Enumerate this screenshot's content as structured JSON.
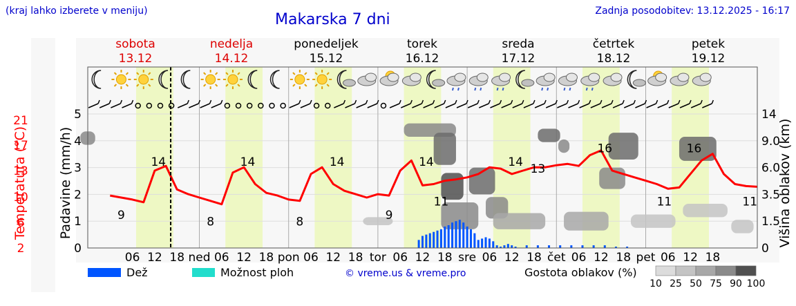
{
  "header": {
    "menu_hint": "(kraj lahko izberete v meniju)",
    "title": "Makarska 7 dni",
    "updated": "Zadnja posodobitev: 13.12.2025 - 16:17"
  },
  "days": [
    {
      "name": "sobota",
      "date": "13.12",
      "weekend": true
    },
    {
      "name": "nedelja",
      "date": "14.12",
      "weekend": true
    },
    {
      "name": "ponedeljek",
      "date": "15.12",
      "weekend": false
    },
    {
      "name": "torek",
      "date": "16.12",
      "weekend": false
    },
    {
      "name": "sreda",
      "date": "17.12",
      "weekend": false
    },
    {
      "name": "četrtek",
      "date": "18.12",
      "weekend": false
    },
    {
      "name": "petek",
      "date": "19.12",
      "weekend": false
    }
  ],
  "colors": {
    "temperature": "#ff0000",
    "rain": "#0055ff",
    "storm": "#22ddcc",
    "daylight": "#eef8c4",
    "now_marker": "#000000",
    "header_text": "#0000cc"
  },
  "weather_icons": [
    "moon-icon",
    "sun-icon",
    "sun-icon",
    "moon-icon",
    "moon-icon",
    "sun-icon",
    "sun-icon",
    "moon-icon",
    "moon-icon",
    "sun-icon",
    "sun-icon",
    "moon-cloud-icon",
    "cloudy-icon",
    "sun-cloud-icon",
    "cloudy-icon",
    "moon-cloud-icon",
    "rain-cloud-icon",
    "rain-cloud-icon",
    "rain-cloud-icon",
    "moon-cloud-icon",
    "rain-cloud-icon",
    "rain-cloud-icon",
    "rain-cloud-icon",
    "cloudy-icon",
    "moon-cloud-icon",
    "sun-cloud-icon",
    "cloudy-icon",
    "cloudy-icon"
  ],
  "chart_data": {
    "type": "line",
    "title": "Makarska 7 dni",
    "series": [
      {
        "name": "Temperatura (°C)",
        "x_hours": [
          0,
          3,
          6,
          9,
          12,
          15,
          18,
          21,
          24,
          27,
          30,
          33,
          36,
          39,
          42,
          45,
          48,
          51,
          54,
          57,
          60,
          63,
          66,
          69,
          72,
          75,
          78,
          81,
          84,
          87,
          90,
          93,
          96,
          99,
          102,
          105,
          108,
          111,
          114,
          117,
          120,
          123,
          126,
          129,
          132,
          135,
          138,
          141,
          144,
          147,
          150,
          153,
          156,
          159,
          162,
          165,
          168,
          171,
          174
        ],
        "values": [
          9.8,
          9.5,
          9.2,
          8.8,
          13.5,
          14.2,
          10.7,
          10,
          9.5,
          9,
          8.5,
          13.2,
          14,
          11.5,
          10.2,
          9.8,
          9.2,
          9,
          13,
          14,
          11.5,
          10.5,
          10,
          9.5,
          10,
          9.8,
          13.5,
          15,
          11.3,
          11.5,
          12,
          12.2,
          12.5,
          13,
          14,
          13.8,
          13,
          13.5,
          14,
          14,
          14.3,
          14.5,
          14.2,
          15.8,
          16.5,
          13.5,
          13,
          12.5,
          12,
          11.5,
          10.8,
          11,
          13,
          15,
          16,
          13,
          11.5,
          11.2,
          11.1
        ]
      },
      {
        "name": "Dež (mm/h)",
        "x_hours": [
          83,
          84,
          85,
          86,
          87,
          88,
          89,
          90,
          91,
          92,
          93,
          94,
          95,
          96,
          97,
          98,
          99,
          100,
          101,
          102,
          103,
          104,
          105,
          106,
          107,
          108,
          109,
          112,
          115,
          118,
          121,
          124,
          127,
          130,
          133,
          136,
          139
        ],
        "values": [
          0.3,
          0.45,
          0.5,
          0.55,
          0.6,
          0.65,
          0.7,
          0.8,
          0.85,
          0.95,
          1.0,
          1.05,
          0.95,
          0.8,
          0.7,
          0.55,
          0.3,
          0.35,
          0.4,
          0.35,
          0.25,
          0.1,
          0.05,
          0.1,
          0.15,
          0.1,
          0.05,
          0.1,
          0.1,
          0.1,
          0.1,
          0.1,
          0.1,
          0.1,
          0.1,
          0.05,
          0.05
        ]
      }
    ],
    "temp_labels": [
      {
        "hour": 3,
        "text": "9"
      },
      {
        "hour": 13,
        "text": "14"
      },
      {
        "hour": 27,
        "text": "8"
      },
      {
        "hour": 37,
        "text": "14"
      },
      {
        "hour": 51,
        "text": "8"
      },
      {
        "hour": 61,
        "text": "14"
      },
      {
        "hour": 75,
        "text": "9"
      },
      {
        "hour": 85,
        "text": "14"
      },
      {
        "hour": 89,
        "text": "11"
      },
      {
        "hour": 109,
        "text": "14"
      },
      {
        "hour": 115,
        "text": "13"
      },
      {
        "hour": 133,
        "text": "16"
      },
      {
        "hour": 149,
        "text": "11"
      },
      {
        "hour": 157,
        "text": "16"
      },
      {
        "hour": 172,
        "text": "11"
      }
    ],
    "x_ticks": [
      "06",
      "12",
      "18",
      "ned",
      "06",
      "12",
      "18",
      "pon",
      "06",
      "12",
      "18",
      "tor",
      "06",
      "12",
      "18",
      "sre",
      "06",
      "12",
      "18",
      "čet",
      "06",
      "12",
      "18",
      "pet",
      "06",
      "12",
      "18"
    ],
    "y_left_precip": {
      "label": "Padavine (mm/h)",
      "ticks": [
        "0",
        "1",
        "2",
        "3",
        "4",
        "5"
      ],
      "range": [
        0,
        5
      ]
    },
    "y_left_temp": {
      "label": "Temperatura (°C)",
      "ticks": [
        "2",
        "6",
        "10",
        "13",
        "17",
        "21"
      ],
      "range": [
        2,
        21
      ]
    },
    "y_right": {
      "label": "Višina oblakov (km)",
      "ticks": [
        "0",
        "1.5",
        "3.5",
        "6.0",
        "9.0",
        "14"
      ]
    },
    "x_range_hours": [
      -6,
      174
    ],
    "now_hour": 16.3
  },
  "legend": {
    "rain": "Dež",
    "storm": "Možnost ploh",
    "credit": "© vreme.us & vreme.pro",
    "cloud_density": "Gostota oblakov (%)",
    "density_steps": [
      "10",
      "25",
      "50",
      "75",
      "90",
      "100"
    ],
    "density_colors": [
      "#dcdcdc",
      "#c4c4c4",
      "#a8a8a8",
      "#8a8a8a",
      "#6c6c6c",
      "#505050"
    ]
  }
}
